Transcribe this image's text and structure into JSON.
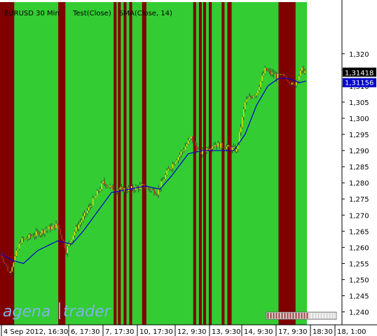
{
  "window": {
    "title_segments": [
      "EURUSD 30 Min",
      "Test(Close)",
      "SMA(Close, 14)"
    ]
  },
  "logo": {
    "part1": "agena",
    "part2": "trader"
  },
  "colors": {
    "green_band": "#33cc33",
    "red_band": "#800000",
    "sma_line": "#0000cc",
    "bull_candle": "#dede00",
    "bear_candle": "#cc2222",
    "wick": "#333333",
    "price_tag_bg": "#000000",
    "sma_tag_bg": "#0000cc"
  },
  "chart_data": {
    "type": "candlestick",
    "title": "",
    "ylim": [
      1.236,
      1.336
    ],
    "x_tick_labels": [
      "4 Sep 2012, 16:30",
      "6, 17:30",
      "7, 17:30",
      "10, 17:30",
      "12, 9:30",
      "13, 9:30",
      "14, 9:30",
      "17, 9:30",
      "18:30",
      "18, 1:00"
    ],
    "y_tick_labels": [
      "1,320",
      "1,315",
      "1,310",
      "1,305",
      "1,300",
      "1,295",
      "1,290",
      "1,285",
      "1,280",
      "1,275",
      "1,270",
      "1,265",
      "1,260",
      "1,255",
      "1,250",
      "1,245",
      "1,240"
    ],
    "y_tick_values": [
      1.32,
      1.315,
      1.31,
      1.305,
      1.3,
      1.295,
      1.29,
      1.285,
      1.28,
      1.275,
      1.27,
      1.265,
      1.26,
      1.255,
      1.25,
      1.245,
      1.24
    ],
    "last_price_label": "1,31418",
    "last_price": 1.31418,
    "sma_price_label": "1,31156",
    "sma_price": 1.31156,
    "bar_count": 216,
    "red_regions_bars": [
      [
        0,
        10
      ],
      [
        41,
        46
      ],
      [
        80,
        82
      ],
      [
        83,
        85
      ],
      [
        87,
        89
      ],
      [
        91,
        93
      ],
      [
        100,
        103
      ],
      [
        136,
        138
      ],
      [
        140,
        142
      ],
      [
        143,
        145
      ],
      [
        147,
        149
      ],
      [
        156,
        158
      ],
      [
        160,
        163
      ],
      [
        196,
        208
      ]
    ],
    "price_path": [
      [
        0,
        1.258
      ],
      [
        6,
        1.252
      ],
      [
        14,
        1.262
      ],
      [
        24,
        1.264
      ],
      [
        40,
        1.267
      ],
      [
        46,
        1.259
      ],
      [
        52,
        1.265
      ],
      [
        62,
        1.272
      ],
      [
        72,
        1.28
      ],
      [
        80,
        1.278
      ],
      [
        90,
        1.278
      ],
      [
        100,
        1.279
      ],
      [
        110,
        1.277
      ],
      [
        118,
        1.284
      ],
      [
        128,
        1.29
      ],
      [
        134,
        1.294
      ],
      [
        140,
        1.289
      ],
      [
        150,
        1.292
      ],
      [
        160,
        1.291
      ],
      [
        166,
        1.29
      ],
      [
        172,
        1.305
      ],
      [
        180,
        1.308
      ],
      [
        186,
        1.315
      ],
      [
        194,
        1.313
      ],
      [
        200,
        1.313
      ],
      [
        206,
        1.31
      ],
      [
        212,
        1.315
      ],
      [
        215,
        1.3142
      ]
    ],
    "sma_path": [
      [
        0,
        1.258
      ],
      [
        8,
        1.256
      ],
      [
        16,
        1.255
      ],
      [
        26,
        1.259
      ],
      [
        40,
        1.262
      ],
      [
        50,
        1.261
      ],
      [
        58,
        1.265
      ],
      [
        68,
        1.271
      ],
      [
        78,
        1.277
      ],
      [
        90,
        1.278
      ],
      [
        102,
        1.279
      ],
      [
        112,
        1.278
      ],
      [
        120,
        1.282
      ],
      [
        132,
        1.289
      ],
      [
        142,
        1.29
      ],
      [
        152,
        1.29
      ],
      [
        164,
        1.29
      ],
      [
        172,
        1.295
      ],
      [
        180,
        1.304
      ],
      [
        188,
        1.31
      ],
      [
        196,
        1.3125
      ],
      [
        204,
        1.3122
      ],
      [
        210,
        1.311
      ],
      [
        215,
        1.31156
      ]
    ]
  }
}
